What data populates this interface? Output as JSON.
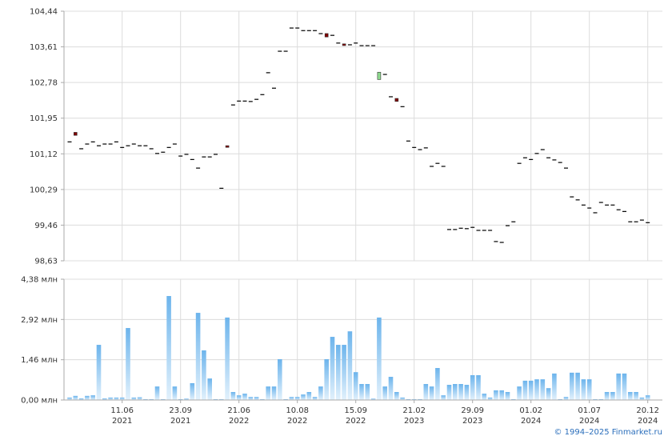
{
  "chart_data": [
    {
      "type": "candlestick",
      "open": [
        101.4,
        101.62,
        101.24,
        101.35,
        101.4,
        101.31,
        101.35,
        101.35,
        101.4,
        101.27,
        101.31,
        101.35,
        101.31,
        101.31,
        101.24,
        101.13,
        101.16,
        101.27,
        101.35,
        101.07,
        101.11,
        100.99,
        100.79,
        101.05,
        101.05,
        101.11,
        100.32,
        101.31,
        102.26,
        102.35,
        102.35,
        102.34,
        102.39,
        102.5,
        103.01,
        102.65,
        103.51,
        103.51,
        104.05,
        104.05,
        103.99,
        103.99,
        103.99,
        103.92,
        103.92,
        103.88,
        103.7,
        103.68,
        103.66,
        103.7,
        103.64,
        103.64,
        103.64,
        102.85,
        102.97,
        102.45,
        102.41,
        102.22,
        101.42,
        101.27,
        101.22,
        101.26,
        100.83,
        100.9,
        100.83,
        99.36,
        99.36,
        99.39,
        99.38,
        99.41,
        99.34,
        99.34,
        99.34,
        99.08,
        99.06,
        99.45,
        99.54,
        100.9,
        101.03,
        100.99,
        101.13,
        101.22,
        101.03,
        100.98,
        100.92,
        100.79,
        100.12,
        100.05,
        99.93,
        99.86,
        99.75,
        99.99,
        99.93,
        99.93,
        99.82,
        99.78,
        99.54,
        99.54,
        99.58,
        99.52
      ],
      "close": [
        101.4,
        101.55,
        101.24,
        101.35,
        101.4,
        101.31,
        101.35,
        101.35,
        101.4,
        101.27,
        101.31,
        101.35,
        101.31,
        101.31,
        101.24,
        101.13,
        101.16,
        101.27,
        101.35,
        101.07,
        101.11,
        100.99,
        100.79,
        101.05,
        101.05,
        101.11,
        100.32,
        101.27,
        102.26,
        102.35,
        102.35,
        102.34,
        102.39,
        102.5,
        103.01,
        102.65,
        103.51,
        103.51,
        104.05,
        104.05,
        103.99,
        103.99,
        103.99,
        103.92,
        103.84,
        103.88,
        103.7,
        103.64,
        103.66,
        103.7,
        103.64,
        103.64,
        103.64,
        103.02,
        102.97,
        102.45,
        102.34,
        102.22,
        101.42,
        101.27,
        101.22,
        101.26,
        100.83,
        100.9,
        100.83,
        99.36,
        99.36,
        99.39,
        99.38,
        99.41,
        99.34,
        99.34,
        99.34,
        99.08,
        99.06,
        99.45,
        99.54,
        100.9,
        101.03,
        100.99,
        101.13,
        101.22,
        101.03,
        100.98,
        100.92,
        100.79,
        100.12,
        100.05,
        99.93,
        99.86,
        99.75,
        99.99,
        99.93,
        99.93,
        99.82,
        99.78,
        99.54,
        99.54,
        99.58,
        99.52
      ],
      "up_color": "#8fdc8f",
      "down_color": "#800000",
      "flat_color": "#000000",
      "ylim": [
        98.63,
        104.44
      ],
      "yticks": [
        {
          "value": 98.63,
          "label": "98,63"
        },
        {
          "value": 99.46,
          "label": "99,46"
        },
        {
          "value": 100.29,
          "label": "100,29"
        },
        {
          "value": 101.12,
          "label": "101,12"
        },
        {
          "value": 101.95,
          "label": "101,95"
        },
        {
          "value": 102.78,
          "label": "102,78"
        },
        {
          "value": 103.61,
          "label": "103,61"
        },
        {
          "value": 104.44,
          "label": "104,44"
        }
      ],
      "grid": true
    },
    {
      "type": "bar",
      "categories": [
        null,
        null,
        null,
        null,
        null,
        null,
        null,
        null,
        null,
        "11.06 2021",
        null,
        null,
        null,
        null,
        null,
        null,
        null,
        null,
        null,
        "23.09 2021",
        null,
        null,
        null,
        null,
        null,
        null,
        null,
        null,
        null,
        "21.06 2022",
        null,
        null,
        null,
        null,
        null,
        null,
        null,
        null,
        null,
        "10.08 2022",
        null,
        null,
        null,
        null,
        null,
        null,
        null,
        null,
        null,
        "15.09 2022",
        null,
        null,
        null,
        null,
        null,
        null,
        null,
        null,
        null,
        "21.02 2023",
        null,
        null,
        null,
        null,
        null,
        null,
        null,
        null,
        null,
        "29.09 2023",
        null,
        null,
        null,
        null,
        null,
        null,
        null,
        null,
        null,
        "01.02 2024",
        null,
        null,
        null,
        null,
        null,
        null,
        null,
        null,
        null,
        "01.07 2024",
        null,
        null,
        null,
        null,
        null,
        null,
        null,
        null,
        null,
        "20.12 2024"
      ],
      "values": [
        0.09,
        0.15,
        0.06,
        0.15,
        0.17,
        2.0,
        0.06,
        0.09,
        0.09,
        0.09,
        2.61,
        0.09,
        0.1,
        0.03,
        0.03,
        0.49,
        0.03,
        3.77,
        0.49,
        0.03,
        0.05,
        0.61,
        3.16,
        1.8,
        0.78,
        0.03,
        0.03,
        2.99,
        0.29,
        0.17,
        0.23,
        0.11,
        0.11,
        0.03,
        0.49,
        0.49,
        1.48,
        0.03,
        0.11,
        0.11,
        0.2,
        0.29,
        0.11,
        0.49,
        1.48,
        2.29,
        2.0,
        2.0,
        2.49,
        1.01,
        0.58,
        0.58,
        0.05,
        2.99,
        0.49,
        0.84,
        0.29,
        0.09,
        0.03,
        0.03,
        0.03,
        0.58,
        0.49,
        1.16,
        0.17,
        0.55,
        0.58,
        0.58,
        0.55,
        0.9,
        0.9,
        0.23,
        0.09,
        0.35,
        0.35,
        0.29,
        0.03,
        0.49,
        0.7,
        0.7,
        0.75,
        0.75,
        0.43,
        0.96,
        0.03,
        0.11,
        0.99,
        0.99,
        0.75,
        0.75,
        0.03,
        0.03,
        0.29,
        0.29,
        0.96,
        0.96,
        0.29,
        0.29,
        0.09,
        0.17
      ],
      "color": "#6cb4ec",
      "ylim": [
        0,
        4.38
      ],
      "yticks": [
        {
          "value": 0,
          "label": "0,00 млн"
        },
        {
          "value": 1.46,
          "label": "1,46 млн"
        },
        {
          "value": 2.92,
          "label": "2,92 млн"
        },
        {
          "value": 4.38,
          "label": "4,38 млн"
        }
      ],
      "grid": true
    }
  ],
  "credit": "© 1994–2025 Finmarket.ru"
}
